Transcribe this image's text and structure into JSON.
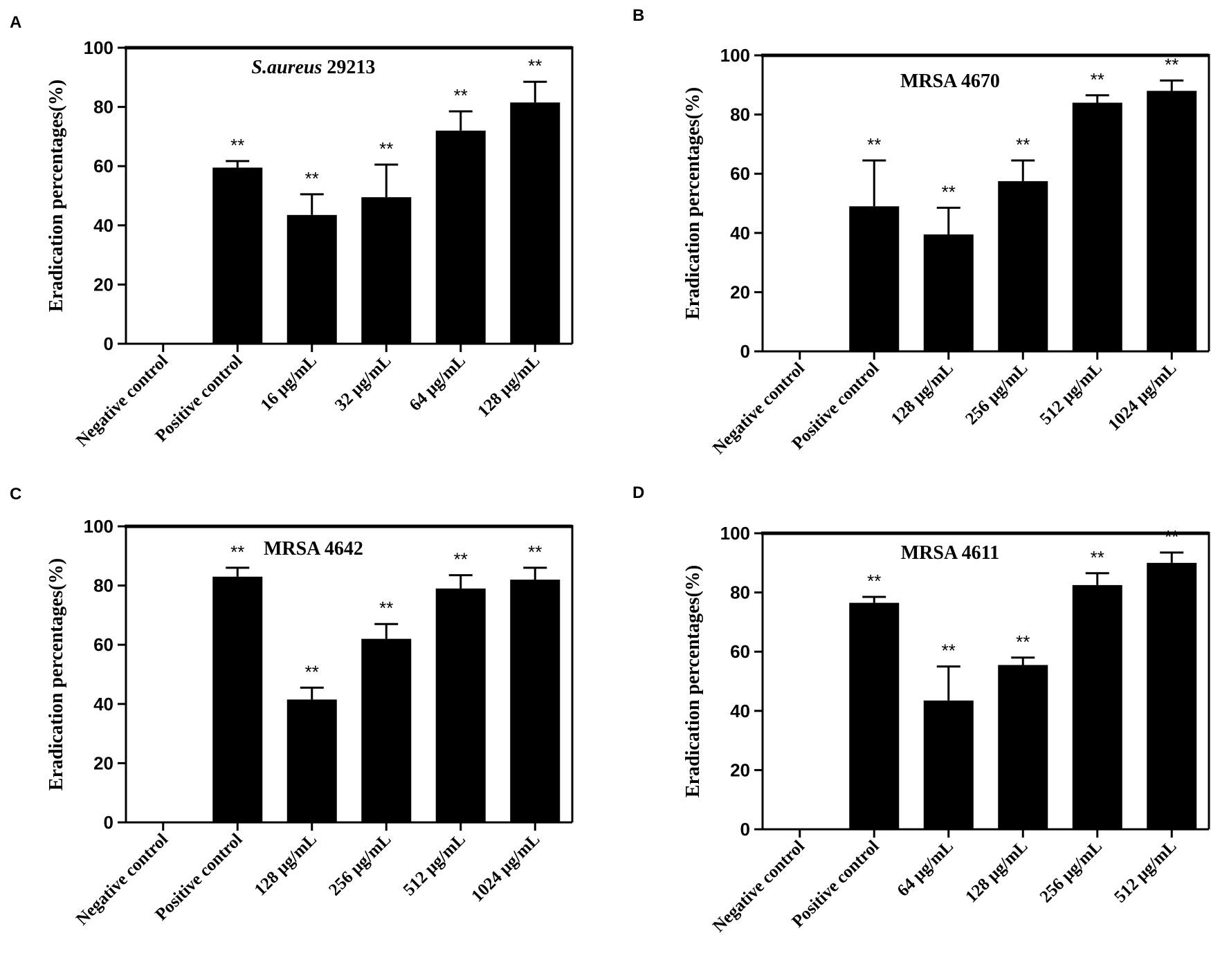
{
  "chart_data": [
    {
      "panel": "A",
      "type": "bar",
      "title_italic": "S.aureus",
      "title_rest": " 29213",
      "ylabel": "Eradication percentages(%)",
      "ylim": [
        0,
        100
      ],
      "yticks": [
        0,
        20,
        40,
        60,
        80,
        100
      ],
      "categories": [
        "Negative control",
        "Positive control",
        "16 μg/mL",
        "32 μg/mL",
        "64 μg/mL",
        "128 μg/mL"
      ],
      "values": [
        0,
        59.5,
        43.5,
        49.5,
        72,
        81.5
      ],
      "errors": [
        0,
        2.2,
        7,
        11,
        6.5,
        7
      ],
      "significance": [
        "",
        "**",
        "**",
        "**",
        "**",
        "**"
      ],
      "bar_color": "#000000"
    },
    {
      "panel": "B",
      "type": "bar",
      "title_italic": "",
      "title_rest": "MRSA 4670",
      "ylabel": "Eradication percentages(%)",
      "ylim": [
        0,
        100
      ],
      "yticks": [
        0,
        20,
        40,
        60,
        80,
        100
      ],
      "categories": [
        "Negative control",
        "Positive control",
        "128 μg/mL",
        "256 μg/mL",
        "512 μg/mL",
        "1024 μg/mL"
      ],
      "values": [
        0,
        49,
        39.5,
        57.5,
        84,
        88
      ],
      "errors": [
        0,
        15.5,
        9,
        7,
        2.5,
        3.5
      ],
      "significance": [
        "",
        "**",
        "**",
        "**",
        "**",
        "**"
      ],
      "bar_color": "#000000"
    },
    {
      "panel": "C",
      "type": "bar",
      "title_italic": "",
      "title_rest": "MRSA 4642",
      "ylabel": "Eradication percentages(%)",
      "ylim": [
        0,
        100
      ],
      "yticks": [
        0,
        20,
        40,
        60,
        80,
        100
      ],
      "categories": [
        "Negative control",
        "Positive control",
        "128 μg/mL",
        "256 μg/mL",
        "512 μg/mL",
        "1024 μg/mL"
      ],
      "values": [
        0,
        83,
        41.5,
        62,
        79,
        82
      ],
      "errors": [
        0,
        3,
        4,
        5,
        4.5,
        4
      ],
      "significance": [
        "",
        "**",
        "**",
        "**",
        "**",
        "**"
      ],
      "bar_color": "#000000"
    },
    {
      "panel": "D",
      "type": "bar",
      "title_italic": "",
      "title_rest": "MRSA 4611",
      "ylabel": "Eradication percentages(%)",
      "ylim": [
        0,
        100
      ],
      "yticks": [
        0,
        20,
        40,
        60,
        80,
        100
      ],
      "categories": [
        "Negative control",
        "Positive control",
        "64 μg/mL",
        "128 μg/mL",
        "256 μg/mL",
        "512 μg/mL"
      ],
      "values": [
        0,
        76.5,
        43.5,
        55.5,
        82.5,
        90
      ],
      "errors": [
        0,
        2,
        11.5,
        2.5,
        4,
        3.5
      ],
      "significance": [
        "",
        "**",
        "**",
        "**",
        "**",
        "**"
      ],
      "bar_color": "#000000"
    }
  ]
}
